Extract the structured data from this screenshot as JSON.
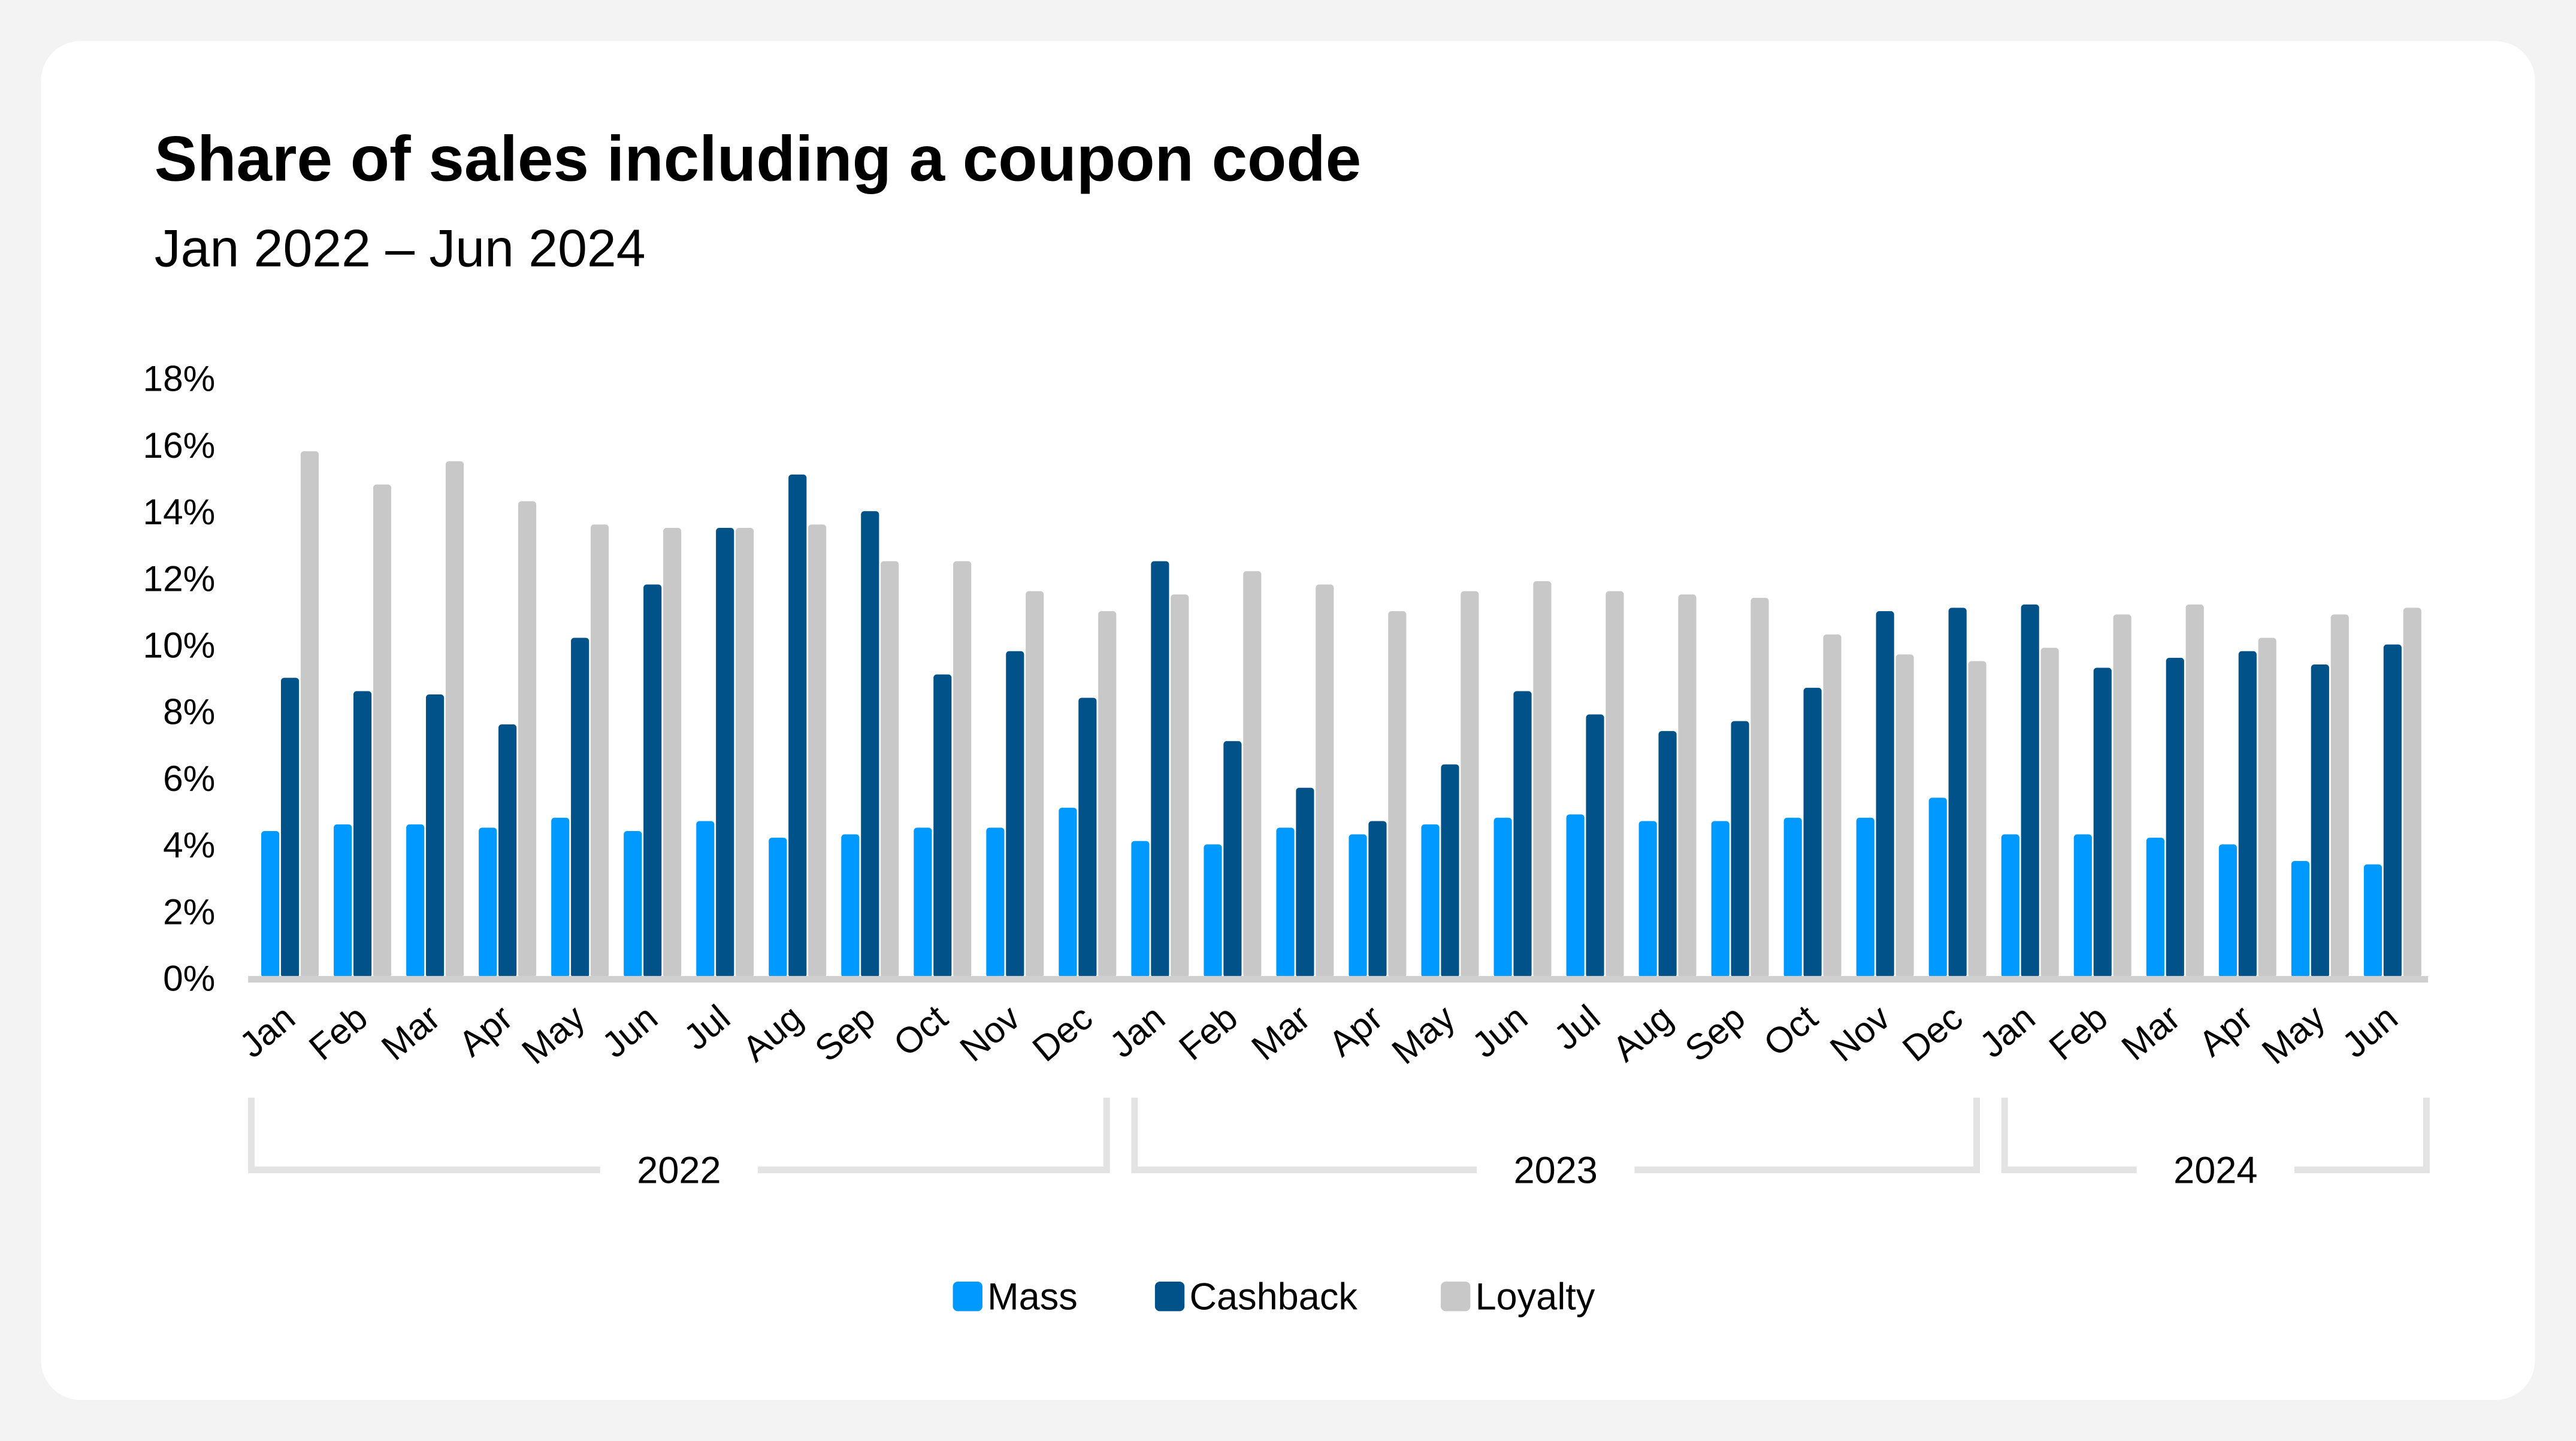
{
  "chart_data": {
    "type": "bar",
    "title": "Share of sales including a coupon code",
    "subtitle": "Jan 2022 – Jun 2024",
    "xlabel": "",
    "ylabel": "",
    "ylim": [
      0,
      18
    ],
    "yticks": [
      "0%",
      "2%",
      "4%",
      "6%",
      "8%",
      "10%",
      "12%",
      "14%",
      "16%",
      "18%"
    ],
    "grid": false,
    "legend_position": "bottom-center",
    "categories": [
      "Jan",
      "Feb",
      "Mar",
      "Apr",
      "May",
      "Jun",
      "Jul",
      "Aug",
      "Sep",
      "Oct",
      "Nov",
      "Dec",
      "Jan",
      "Feb",
      "Mar",
      "Apr",
      "May",
      "Jun",
      "Jul",
      "Aug",
      "Sep",
      "Oct",
      "Nov",
      "Dec",
      "Jan",
      "Feb",
      "Mar",
      "Apr",
      "May",
      "Jun"
    ],
    "groups": [
      {
        "label": "2022",
        "count": 12
      },
      {
        "label": "2023",
        "count": 12
      },
      {
        "label": "2024",
        "count": 6
      }
    ],
    "series": [
      {
        "name": "Mass",
        "color": "#0099FF",
        "values": [
          4.4,
          4.6,
          4.6,
          4.5,
          4.8,
          4.4,
          4.7,
          4.2,
          4.3,
          4.5,
          4.5,
          5.1,
          4.1,
          4.0,
          4.5,
          4.3,
          4.6,
          4.8,
          4.9,
          4.7,
          4.7,
          4.8,
          4.8,
          5.4,
          4.3,
          4.3,
          4.2,
          4.0,
          3.5,
          3.4
        ]
      },
      {
        "name": "Cashback",
        "color": "#005288",
        "values": [
          9.0,
          8.6,
          8.5,
          7.6,
          10.2,
          11.8,
          13.5,
          15.1,
          14.0,
          9.1,
          9.8,
          8.4,
          12.5,
          7.1,
          5.7,
          4.7,
          6.4,
          8.6,
          7.9,
          7.4,
          7.7,
          8.7,
          11.0,
          11.1,
          11.2,
          9.3,
          9.6,
          9.8,
          9.4,
          10.0
        ]
      },
      {
        "name": "Loyalty",
        "color": "#C8C8C8",
        "values": [
          15.8,
          14.8,
          15.5,
          14.3,
          13.6,
          13.5,
          13.5,
          13.6,
          12.5,
          12.5,
          11.6,
          11.0,
          11.5,
          12.2,
          11.8,
          11.0,
          11.6,
          11.9,
          11.6,
          11.5,
          11.4,
          10.3,
          9.7,
          9.5,
          9.9,
          10.9,
          11.2,
          10.2,
          10.9,
          11.1
        ]
      }
    ]
  }
}
